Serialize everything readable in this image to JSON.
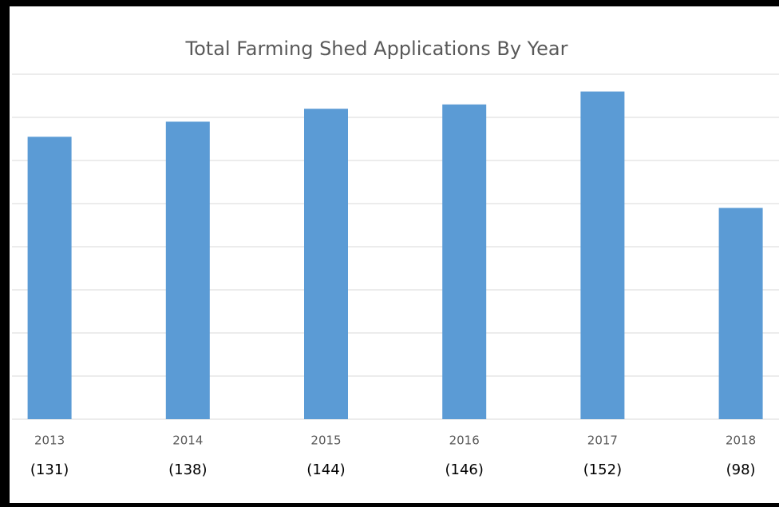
{
  "chart_data": {
    "type": "bar",
    "title": "Total Farming Shed Applications By Year",
    "categories": [
      "2013",
      "2014",
      "2015",
      "2016",
      "2017",
      "2018"
    ],
    "values": [
      131,
      138,
      144,
      146,
      152,
      98
    ],
    "value_labels": [
      "(131)",
      "(138)",
      "(144)",
      "(146)",
      "(152)",
      "(98)"
    ],
    "color": "#5b9bd5",
    "ylim": [
      0,
      160
    ],
    "yticks": [
      0,
      20,
      40,
      60,
      80,
      100,
      120,
      140,
      160
    ],
    "grid": true
  }
}
